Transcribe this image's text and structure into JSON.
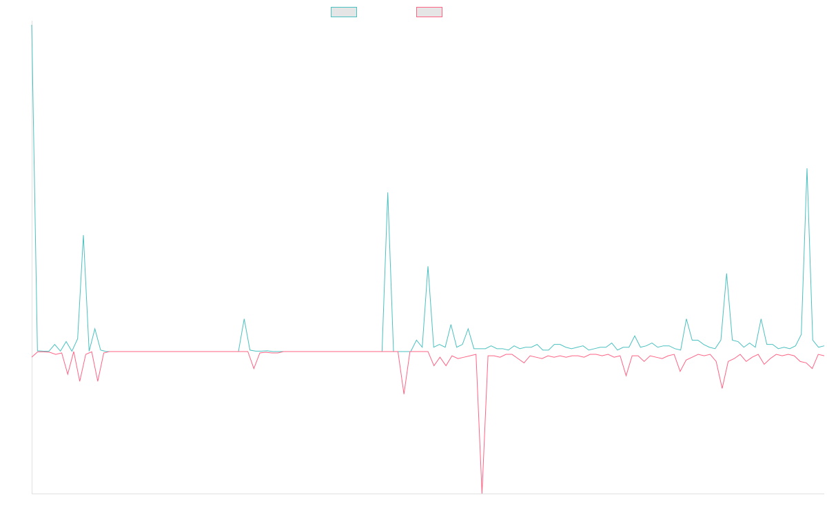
{
  "chart_data": {
    "type": "line",
    "title": "",
    "xlabel": "",
    "ylabel": "",
    "ylim": [
      -1,
      2.3
    ],
    "grid": false,
    "legend_position": "top-center",
    "series": [
      {
        "name": "",
        "color": "#4bc0c0",
        "values": [
          2.3,
          0.005,
          0.003,
          0.002,
          0.05,
          0.003,
          0.07,
          0.002,
          0.09,
          0.82,
          0.002,
          0.16,
          0.01,
          0,
          0,
          0,
          0,
          0,
          0,
          0,
          0,
          0,
          0,
          0,
          0,
          0,
          0,
          0,
          0,
          0,
          0,
          0,
          0,
          0,
          0,
          0,
          0,
          0.23,
          0.01,
          0.003,
          0.003,
          0.005,
          0,
          0,
          0,
          0,
          0,
          0,
          0,
          0,
          0,
          0,
          0,
          0,
          0,
          0,
          0,
          0,
          0,
          0,
          0,
          0,
          1.12,
          0,
          0,
          0,
          0,
          0.08,
          0.03,
          0.6,
          0.03,
          0.05,
          0.03,
          0.19,
          0.03,
          0.05,
          0.16,
          0.02,
          0.02,
          0.02,
          0.04,
          0.02,
          0.02,
          0.01,
          0.04,
          0.02,
          0.03,
          0.03,
          0.05,
          0.01,
          0.01,
          0.05,
          0.05,
          0.03,
          0.02,
          0.03,
          0.04,
          0.01,
          0.02,
          0.03,
          0.03,
          0.06,
          0.01,
          0.03,
          0.03,
          0.11,
          0.03,
          0.04,
          0.06,
          0.03,
          0.04,
          0.04,
          0.02,
          0.01,
          0.23,
          0.08,
          0.08,
          0.05,
          0.03,
          0.02,
          0.08,
          0.55,
          0.08,
          0.07,
          0.03,
          0.06,
          0.03,
          0.23,
          0.05,
          0.05,
          0.02,
          0.03,
          0.02,
          0.04,
          0.12,
          1.29,
          0.08,
          0.03,
          0.04
        ]
      },
      {
        "name": "",
        "color": "#ff6384",
        "values": [
          -0.04,
          -0.002,
          -0.002,
          -0.005,
          -0.02,
          -0.01,
          -0.16,
          0,
          -0.21,
          -0.02,
          -0.002,
          -0.21,
          -0.01,
          0,
          0,
          0,
          0,
          0,
          0,
          0,
          0,
          0,
          0,
          0,
          0,
          0,
          0,
          0,
          0,
          0,
          0,
          0,
          0,
          0,
          0,
          0,
          0,
          -0.12,
          -0.01,
          -0.005,
          -0.01,
          -0.01,
          0,
          0,
          0,
          0,
          0,
          0,
          0,
          0,
          0,
          0,
          0,
          0,
          0,
          0,
          0,
          0,
          0,
          0,
          0,
          0,
          -0.3,
          0,
          0,
          0,
          0,
          -0.1,
          -0.04,
          -0.1,
          -0.03,
          -0.05,
          -0.04,
          -0.03,
          -0.02,
          -1,
          -0.03,
          -0.03,
          -0.04,
          -0.02,
          -0.02,
          -0.05,
          -0.08,
          -0.03,
          -0.04,
          -0.05,
          -0.03,
          -0.04,
          -0.03,
          -0.04,
          -0.03,
          -0.03,
          -0.04,
          -0.02,
          -0.02,
          -0.03,
          -0.02,
          -0.04,
          -0.03,
          -0.17,
          -0.03,
          -0.03,
          -0.07,
          -0.03,
          -0.04,
          -0.05,
          -0.03,
          -0.02,
          -0.14,
          -0.06,
          -0.04,
          -0.02,
          -0.03,
          -0.02,
          -0.07,
          -0.26,
          -0.07,
          -0.05,
          -0.02,
          -0.07,
          -0.04,
          -0.02,
          -0.09,
          -0.05,
          -0.02,
          -0.03,
          -0.02,
          -0.03,
          -0.07,
          -0.08,
          -0.12,
          -0.02,
          -0.03
        ]
      }
    ]
  }
}
